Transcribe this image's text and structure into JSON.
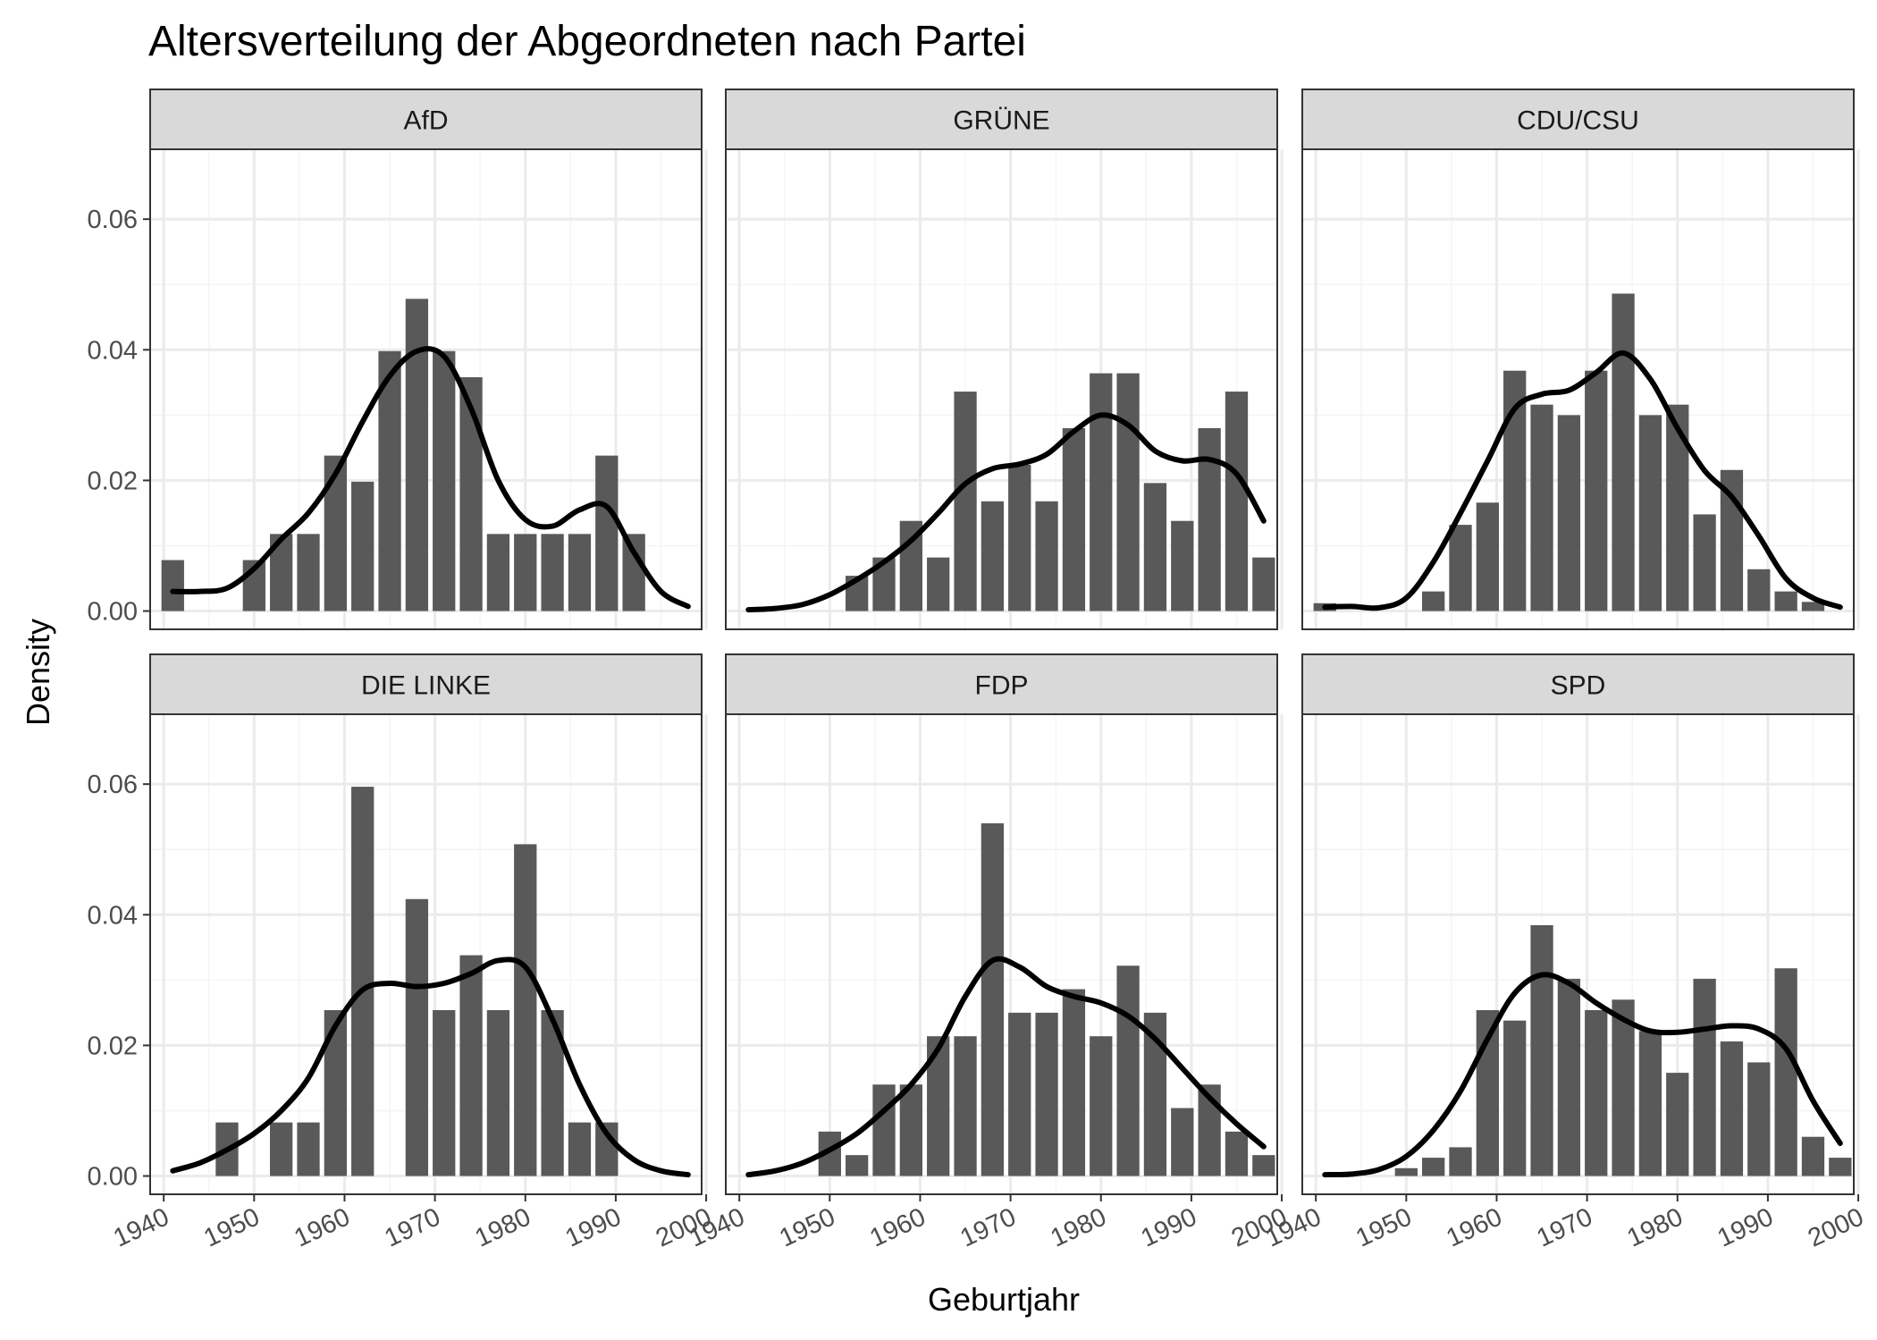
{
  "chart_data": {
    "type": "bar",
    "title": "Altersverteilung der Abgeordneten nach Partei",
    "xlabel": "Geburtjahr",
    "ylabel": "Density",
    "xlim": [
      1938.5,
      1999.5
    ],
    "ylim": [
      -0.0028,
      0.0707
    ],
    "x_ticks": [
      "1940",
      "1950",
      "1960",
      "1970",
      "1980",
      "1990",
      "2000"
    ],
    "y_ticks": [
      "0.00",
      "0.02",
      "0.04",
      "0.06"
    ],
    "bin_centers": [
      1941,
      1944,
      1947,
      1950,
      1953,
      1956,
      1959,
      1962,
      1965,
      1968,
      1971,
      1974,
      1977,
      1980,
      1983,
      1986,
      1989,
      1992,
      1995,
      1998
    ],
    "grid": true,
    "theme": "bw",
    "panels": [
      {
        "name": "AfD",
        "bars": [
          0.0078,
          0,
          0,
          0.0078,
          0.0118,
          0.0118,
          0.0238,
          0.0198,
          0.0398,
          0.0478,
          0.0398,
          0.0358,
          0.0118,
          0.0118,
          0.0118,
          0.0118,
          0.0238,
          0.0118,
          0,
          0
        ],
        "density": {
          "x": [
            1941,
            1944,
            1947,
            1950,
            1953,
            1956,
            1959,
            1962,
            1965,
            1968,
            1971,
            1974,
            1977,
            1980,
            1983,
            1986,
            1989,
            1992,
            1995,
            1998
          ],
          "y": [
            0.003,
            0.003,
            0.0035,
            0.0065,
            0.011,
            0.015,
            0.021,
            0.029,
            0.036,
            0.0398,
            0.039,
            0.031,
            0.02,
            0.014,
            0.013,
            0.0155,
            0.016,
            0.009,
            0.003,
            0.0007
          ]
        }
      },
      {
        "name": "GRÜNE",
        "bars": [
          0,
          0,
          0,
          0,
          0.0054,
          0.0082,
          0.0138,
          0.0082,
          0.0336,
          0.0168,
          0.0224,
          0.0168,
          0.028,
          0.0364,
          0.0364,
          0.0196,
          0.0138,
          0.028,
          0.0336,
          0.0082
        ],
        "density": {
          "x": [
            1941,
            1944,
            1947,
            1950,
            1953,
            1956,
            1959,
            1962,
            1965,
            1968,
            1971,
            1974,
            1977,
            1980,
            1983,
            1986,
            1989,
            1992,
            1995,
            1998
          ],
          "y": [
            0.0002,
            0.0004,
            0.001,
            0.0025,
            0.0048,
            0.0075,
            0.0108,
            0.015,
            0.0195,
            0.0218,
            0.0225,
            0.024,
            0.0275,
            0.03,
            0.0285,
            0.0245,
            0.023,
            0.0232,
            0.021,
            0.0138
          ]
        }
      },
      {
        "name": "CDU/CSU",
        "bars": [
          0.0012,
          0,
          0,
          0,
          0.003,
          0.0132,
          0.0166,
          0.0368,
          0.0316,
          0.03,
          0.0368,
          0.0486,
          0.03,
          0.0316,
          0.0148,
          0.0216,
          0.0064,
          0.003,
          0.0014,
          0
        ],
        "density": {
          "x": [
            1941,
            1944,
            1947,
            1950,
            1953,
            1956,
            1959,
            1962,
            1965,
            1968,
            1971,
            1974,
            1977,
            1980,
            1983,
            1986,
            1989,
            1992,
            1995,
            1998
          ],
          "y": [
            0.0006,
            0.0007,
            0.0005,
            0.002,
            0.0075,
            0.015,
            0.023,
            0.031,
            0.0332,
            0.0338,
            0.0365,
            0.0395,
            0.0355,
            0.028,
            0.0215,
            0.0175,
            0.0115,
            0.005,
            0.002,
            0.0006
          ]
        }
      },
      {
        "name": "DIE LINKE",
        "bars": [
          0,
          0,
          0.0082,
          0,
          0.0082,
          0.0082,
          0.0254,
          0.0596,
          0,
          0.0424,
          0.0254,
          0.0338,
          0.0254,
          0.0508,
          0.0254,
          0.0082,
          0.0082,
          0,
          0,
          0
        ],
        "density": {
          "x": [
            1941,
            1944,
            1947,
            1950,
            1953,
            1956,
            1959,
            1962,
            1965,
            1968,
            1971,
            1974,
            1977,
            1980,
            1983,
            1986,
            1989,
            1992,
            1995,
            1998
          ],
          "y": [
            0.0008,
            0.002,
            0.004,
            0.0065,
            0.01,
            0.015,
            0.023,
            0.0285,
            0.0295,
            0.029,
            0.0295,
            0.031,
            0.033,
            0.032,
            0.024,
            0.014,
            0.0065,
            0.0025,
            0.0008,
            0.0002
          ]
        }
      },
      {
        "name": "FDP",
        "bars": [
          0,
          0,
          0,
          0.0068,
          0.0032,
          0.014,
          0.014,
          0.0214,
          0.0214,
          0.054,
          0.025,
          0.025,
          0.0286,
          0.0214,
          0.0322,
          0.025,
          0.0104,
          0.014,
          0.0068,
          0.0032
        ],
        "density": {
          "x": [
            1941,
            1944,
            1947,
            1950,
            1953,
            1956,
            1959,
            1962,
            1965,
            1968,
            1971,
            1974,
            1977,
            1980,
            1983,
            1986,
            1989,
            1992,
            1995,
            1998
          ],
          "y": [
            0.0002,
            0.0008,
            0.002,
            0.004,
            0.0065,
            0.01,
            0.014,
            0.0195,
            0.0275,
            0.033,
            0.032,
            0.029,
            0.0275,
            0.0265,
            0.0245,
            0.021,
            0.0165,
            0.012,
            0.008,
            0.0045
          ]
        }
      },
      {
        "name": "SPD",
        "bars": [
          0,
          0,
          0,
          0.0012,
          0.0028,
          0.0044,
          0.0254,
          0.0238,
          0.0384,
          0.0302,
          0.0254,
          0.027,
          0.0222,
          0.0158,
          0.0302,
          0.0206,
          0.0174,
          0.0318,
          0.006,
          0.0028
        ],
        "density": {
          "x": [
            1941,
            1944,
            1947,
            1950,
            1953,
            1956,
            1959,
            1962,
            1965,
            1968,
            1971,
            1974,
            1977,
            1980,
            1983,
            1986,
            1989,
            1992,
            1995,
            1998
          ],
          "y": [
            0.0002,
            0.0003,
            0.001,
            0.003,
            0.007,
            0.013,
            0.021,
            0.028,
            0.0308,
            0.0295,
            0.0265,
            0.024,
            0.0222,
            0.022,
            0.0225,
            0.023,
            0.0225,
            0.0195,
            0.0115,
            0.005
          ]
        }
      }
    ]
  },
  "colors": {
    "bar_fill": "#595959",
    "density_line": "#000000",
    "strip_fill": "#d9d9d9",
    "panel_border": "#333333",
    "grid_major": "#ebebeb",
    "grid_minor": "#f5f5f5"
  }
}
